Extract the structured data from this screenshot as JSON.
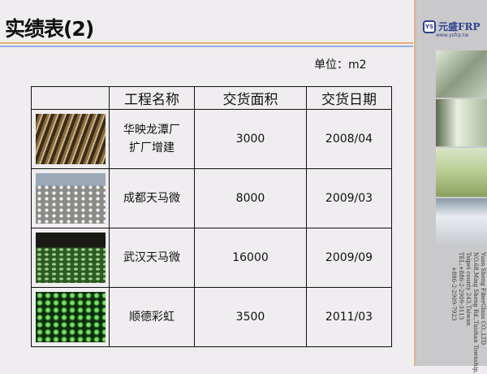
{
  "title": "实绩表(2)",
  "unit": "单位：m2",
  "table": {
    "headers": [
      "",
      "工程名称",
      "交货面积",
      "交货日期"
    ],
    "rows": [
      {
        "name_line1": "华映龙潭厂",
        "name_line2": "扩厂增建",
        "area": "3000",
        "date": "2008/04"
      },
      {
        "name_line1": "成都天马微",
        "name_line2": "",
        "area": "8000",
        "date": "2009/03"
      },
      {
        "name_line1": "武汉天马微",
        "name_line2": "",
        "area": "16000",
        "date": "2009/09"
      },
      {
        "name_line1": "顺德彩虹",
        "name_line2": "",
        "area": "3500",
        "date": "2011/03"
      }
    ]
  },
  "sidebar": {
    "logo_badge": "YS",
    "logo_text": "元盛FRP",
    "url": "www.ysfrp.tw",
    "address": [
      "Yuan Sheng FiberGlass CO.,LTD",
      "NO.68,Ming Sheng Rd.,Taishan Township,",
      "Taipei county 243,Taiwan",
      "TEL:+886-2-2909-3113",
      "+886-2-2909-7923"
    ]
  },
  "colors": {
    "accent_orange": "#e6ab6a",
    "accent_blue": "#8fb0de",
    "brand": "#2f3f8f"
  }
}
